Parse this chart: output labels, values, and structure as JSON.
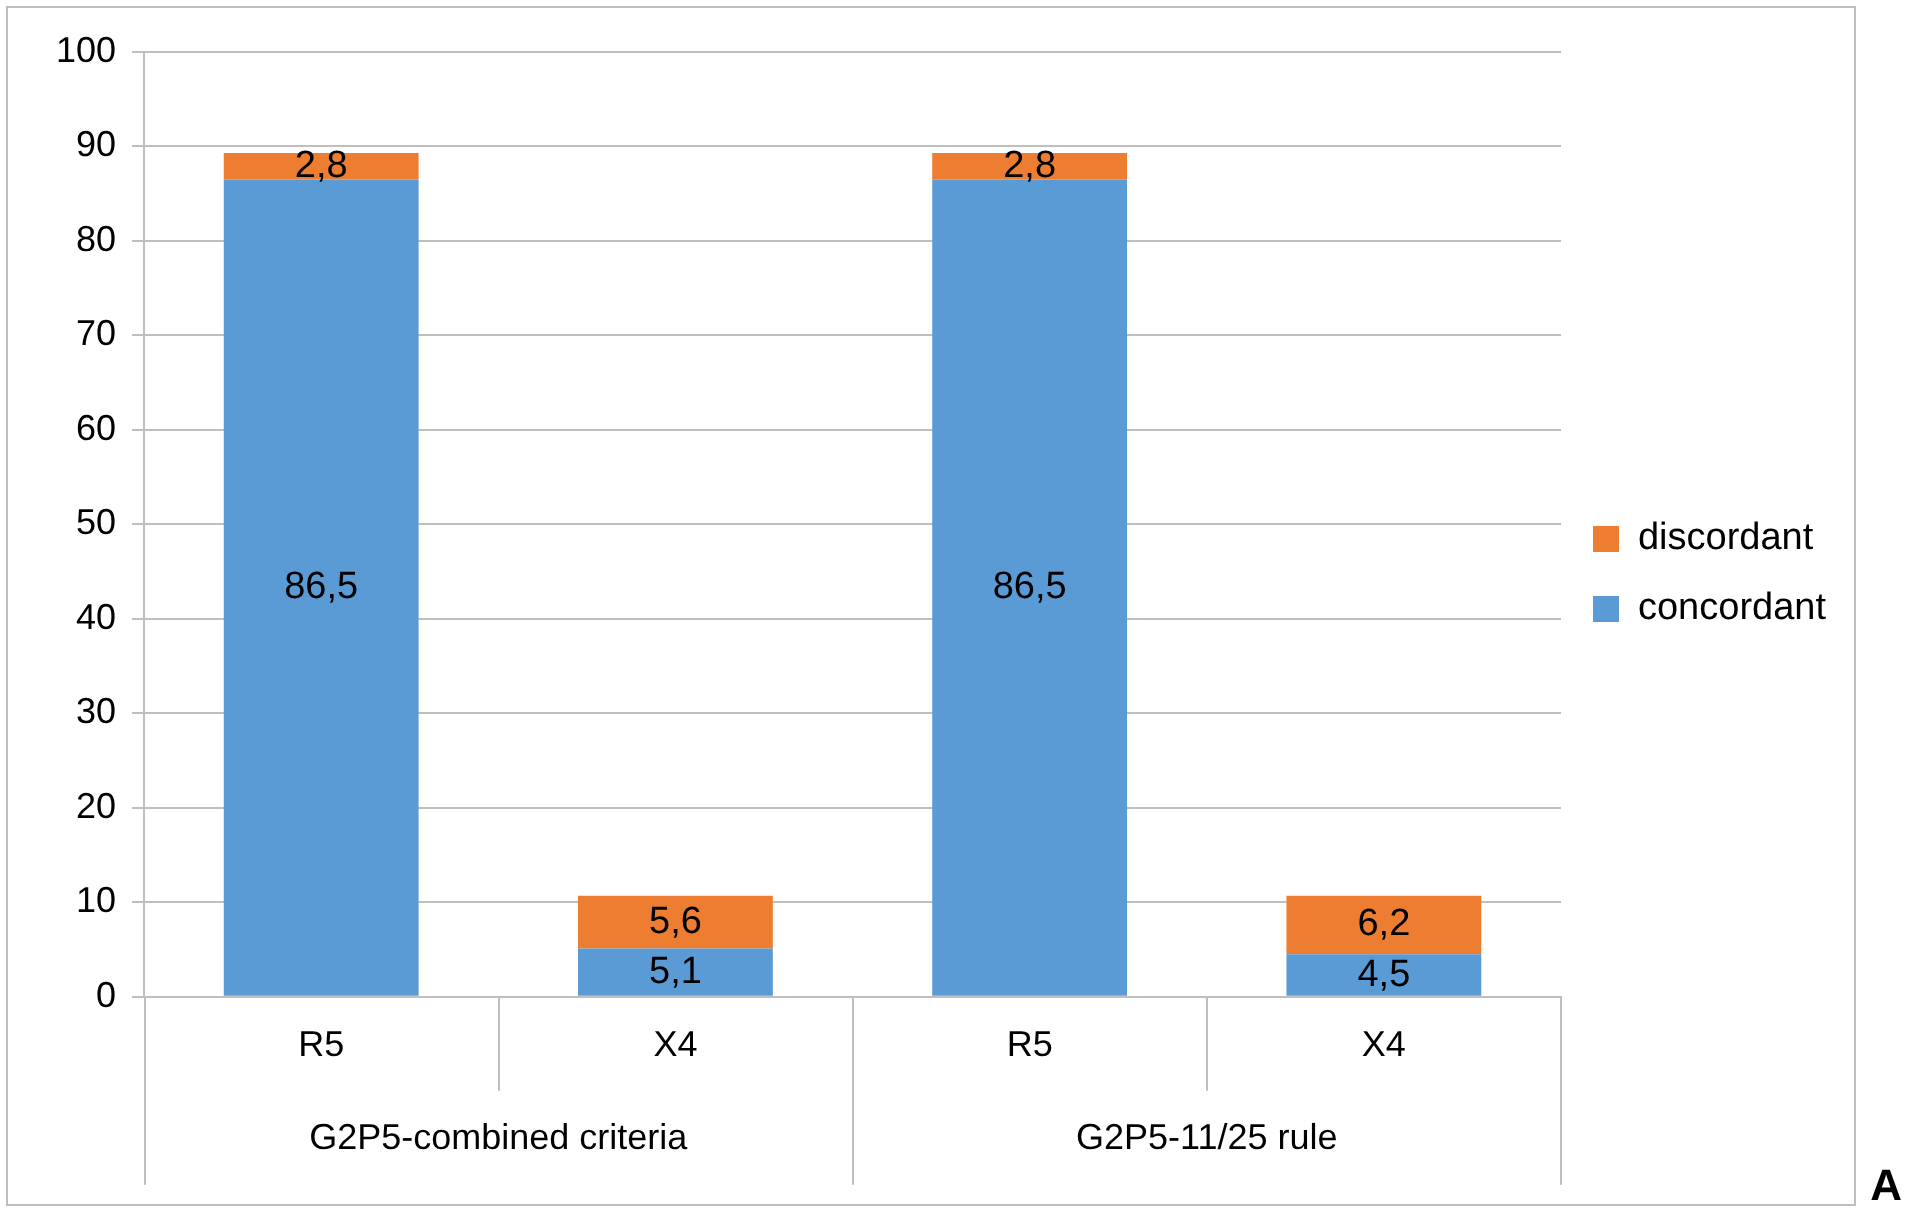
{
  "chart_data": {
    "type": "bar",
    "stacked": true,
    "title": "A",
    "categories": [
      "R5",
      "X4",
      "R5",
      "X4"
    ],
    "annotations": [
      "G2P5-combined criteria",
      "G2P5-11/25 rule"
    ],
    "series": [
      {
        "name": "concordant",
        "color": "#5b9bd5",
        "values": [
          86.5,
          5.1,
          86.5,
          4.5
        ],
        "value_labels": [
          "86,5",
          "5,1",
          "86,5",
          "4,5"
        ]
      },
      {
        "name": "discordant",
        "color": "#ed7d31",
        "values": [
          2.8,
          5.6,
          2.8,
          6.2
        ],
        "value_labels": [
          "2,8",
          "5,6",
          "2,8",
          "6,2"
        ]
      }
    ],
    "ylim": [
      0,
      100
    ],
    "yticks": [
      0,
      10,
      20,
      30,
      40,
      50,
      60,
      70,
      80,
      90,
      100
    ],
    "grid": "y",
    "legend": "right"
  }
}
